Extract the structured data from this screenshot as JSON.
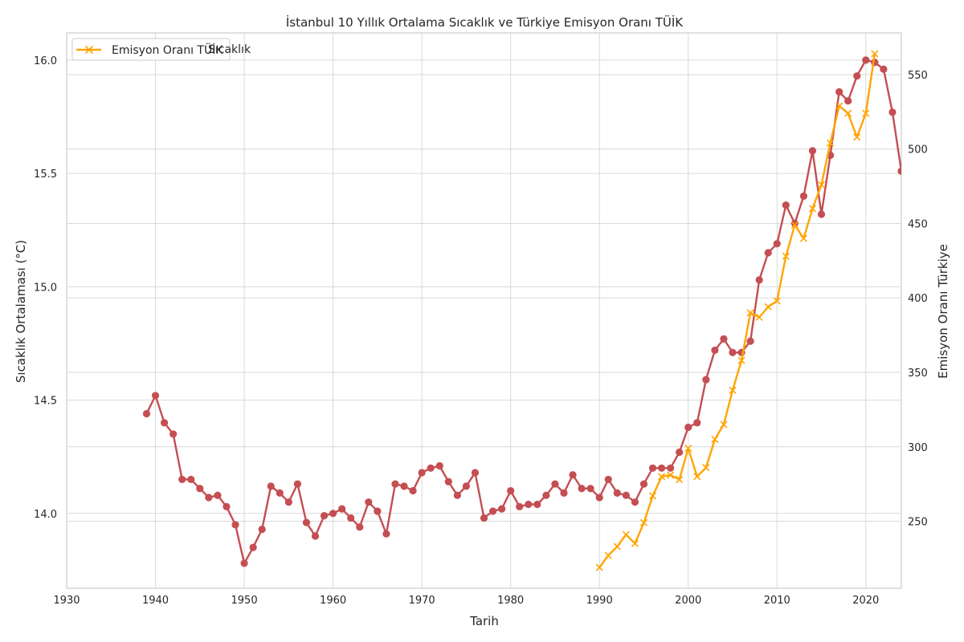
{
  "chart_data": {
    "type": "line",
    "title": "İstanbul 10 Yıllık Ortalama Sıcaklık ve Türkiye Emisyon Oranı TÜİK",
    "xlabel": "Tarih",
    "ylabel_left": "Sıcaklık Ortalaması (°C)",
    "ylabel_right": "Emisyon Oranı Türkiye",
    "xlim": [
      1930,
      2024
    ],
    "ylim_left": [
      13.67,
      16.12
    ],
    "ylim_right": [
      205,
      578
    ],
    "x_ticks": [
      "1930",
      "1940",
      "1950",
      "1960",
      "1970",
      "1980",
      "1990",
      "2000",
      "2010",
      "2020"
    ],
    "y_left_ticks": [
      "14.0",
      "14.5",
      "15.0",
      "15.5",
      "16.0"
    ],
    "y_right_ticks": [
      "250",
      "300",
      "350",
      "400",
      "450",
      "500",
      "550"
    ],
    "grid": true,
    "legend_position": "top-left",
    "legend": [
      {
        "label": "Sıcaklık",
        "color": "#c44e52",
        "marker": "circle",
        "obscured": true
      },
      {
        "label": "Emisyon Oranı TÜİK",
        "color": "#ffa500",
        "marker": "x"
      }
    ],
    "series": [
      {
        "name": "Sıcaklık",
        "axis": "left",
        "color": "#c44e52",
        "marker": "circle",
        "x": [
          1939,
          1940,
          1941,
          1942,
          1943,
          1944,
          1945,
          1946,
          1947,
          1948,
          1949,
          1950,
          1951,
          1952,
          1953,
          1954,
          1955,
          1956,
          1957,
          1958,
          1959,
          1960,
          1961,
          1962,
          1963,
          1964,
          1965,
          1966,
          1967,
          1968,
          1969,
          1970,
          1971,
          1972,
          1973,
          1974,
          1975,
          1976,
          1977,
          1978,
          1979,
          1980,
          1981,
          1982,
          1983,
          1984,
          1985,
          1986,
          1987,
          1988,
          1989,
          1990,
          1991,
          1992,
          1993,
          1994,
          1995,
          1996,
          1997,
          1998,
          1999,
          2000,
          2001,
          2002,
          2003,
          2004,
          2005,
          2006,
          2007,
          2008,
          2009,
          2010,
          2011,
          2012,
          2013,
          2014,
          2015,
          2016,
          2017,
          2018,
          2019,
          2020,
          2021,
          2022,
          2023,
          2024
        ],
        "y": [
          14.44,
          14.52,
          14.4,
          14.35,
          14.15,
          14.15,
          14.11,
          14.07,
          14.08,
          14.03,
          13.95,
          13.78,
          13.85,
          13.93,
          14.12,
          14.09,
          14.05,
          14.13,
          13.96,
          13.9,
          13.99,
          14.0,
          14.02,
          13.98,
          13.94,
          14.05,
          14.01,
          13.91,
          14.13,
          14.12,
          14.1,
          14.18,
          14.2,
          14.21,
          14.14,
          14.08,
          14.12,
          14.18,
          13.98,
          14.01,
          14.02,
          14.1,
          14.03,
          14.04,
          14.04,
          14.08,
          14.13,
          14.09,
          14.17,
          14.11,
          14.11,
          14.07,
          14.15,
          14.09,
          14.08,
          14.05,
          14.13,
          14.2,
          14.2,
          14.2,
          14.27,
          14.38,
          14.4,
          14.59,
          14.72,
          14.77,
          14.71,
          14.71,
          14.76,
          15.03,
          15.15,
          15.19,
          15.36,
          15.28,
          15.4,
          15.6,
          15.32,
          15.58,
          15.86,
          15.82,
          15.93,
          16.0,
          15.99,
          15.96,
          15.77,
          15.51
        ]
      },
      {
        "name": "Emisyon Oranı TÜİK",
        "axis": "right",
        "color": "#ffa500",
        "marker": "x",
        "x": [
          1990,
          1991,
          1992,
          1993,
          1994,
          1995,
          1996,
          1997,
          1998,
          1999,
          2000,
          2001,
          2002,
          2003,
          2004,
          2005,
          2006,
          2007,
          2008,
          2009,
          2010,
          2011,
          2012,
          2013,
          2014,
          2015,
          2016,
          2017,
          2018,
          2019,
          2020,
          2021
        ],
        "y": [
          219,
          227,
          233,
          241,
          235,
          249,
          267,
          280,
          281,
          278,
          299,
          280,
          286,
          305,
          315,
          338,
          358,
          390,
          387,
          394,
          398,
          428,
          449,
          440,
          460,
          476,
          504,
          529,
          524,
          508,
          524,
          564
        ]
      }
    ]
  }
}
